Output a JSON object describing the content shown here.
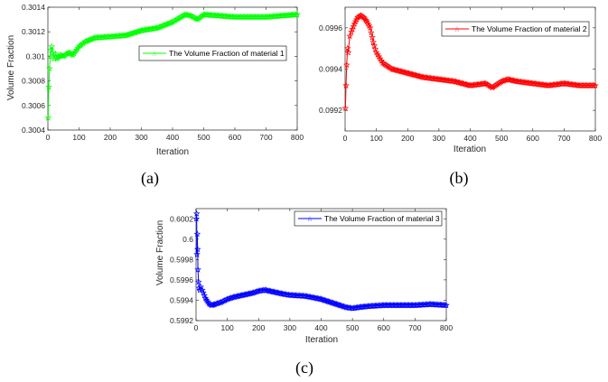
{
  "chart_data": [
    {
      "id": "a",
      "type": "line",
      "caption": "(a)",
      "xlabel": "Iteration",
      "ylabel": "Volume Fraction",
      "xlim": [
        0,
        800
      ],
      "ylim": [
        0.3004,
        0.3014
      ],
      "xticks": [
        0,
        100,
        200,
        300,
        400,
        500,
        600,
        700,
        800
      ],
      "xtick_labels": [
        "0",
        "100",
        "200",
        "300",
        "400",
        "500",
        "600",
        "700",
        "800"
      ],
      "yticks": [
        0.3004,
        0.3006,
        0.3008,
        0.301,
        0.3012,
        0.3014
      ],
      "ytick_labels": [
        "0.3004",
        "0.3006",
        "0.3008",
        "0.301",
        "0.3012",
        "0.3014"
      ],
      "legend": "top-right",
      "series": [
        {
          "name": "The Volume Fraction of material 1",
          "color": "#00ff00",
          "marker": "star",
          "x": [
            1,
            3,
            5,
            8,
            10,
            12,
            15,
            20,
            25,
            30,
            40,
            50,
            60,
            70,
            80,
            100,
            120,
            150,
            200,
            250,
            300,
            350,
            400,
            420,
            440,
            460,
            480,
            500,
            550,
            600,
            650,
            700,
            750,
            800
          ],
          "values": [
            0.3005,
            0.30075,
            0.3009,
            0.301,
            0.30105,
            0.30108,
            0.30103,
            0.30098,
            0.30102,
            0.30098,
            0.30101,
            0.301,
            0.30102,
            0.30103,
            0.30101,
            0.30108,
            0.30112,
            0.30115,
            0.30116,
            0.30117,
            0.30121,
            0.30123,
            0.30128,
            0.30131,
            0.30134,
            0.30133,
            0.3013,
            0.30134,
            0.30133,
            0.30132,
            0.30132,
            0.30132,
            0.30133,
            0.30134
          ]
        }
      ]
    },
    {
      "id": "b",
      "type": "line",
      "caption": "(b)",
      "xlabel": "Iteration",
      "ylabel": "",
      "xlim": [
        0,
        800
      ],
      "ylim": [
        0.0991,
        0.0997
      ],
      "xticks": [
        0,
        100,
        200,
        300,
        400,
        500,
        600,
        700,
        800
      ],
      "xtick_labels": [
        "0",
        "100",
        "200",
        "300",
        "400",
        "500",
        "600",
        "700",
        "800"
      ],
      "yticks": [
        0.0992,
        0.0994,
        0.0996
      ],
      "ytick_labels": [
        "0.0992",
        "0.0994",
        "0.0996"
      ],
      "legend": "top-right",
      "series": [
        {
          "name": "The Volume Fraction of material 2",
          "color": "#ff0000",
          "marker": "star",
          "x": [
            1,
            3,
            5,
            8,
            10,
            15,
            20,
            30,
            40,
            50,
            60,
            70,
            80,
            90,
            100,
            120,
            150,
            200,
            250,
            300,
            350,
            400,
            450,
            470,
            500,
            520,
            550,
            600,
            650,
            700,
            750,
            800
          ],
          "values": [
            0.09921,
            0.09932,
            0.09942,
            0.0995,
            0.09948,
            0.09956,
            0.09958,
            0.09962,
            0.09965,
            0.09966,
            0.09965,
            0.09963,
            0.0996,
            0.09953,
            0.09948,
            0.09943,
            0.0994,
            0.09938,
            0.09936,
            0.09935,
            0.09934,
            0.09932,
            0.09933,
            0.09931,
            0.09934,
            0.09935,
            0.09934,
            0.09933,
            0.09932,
            0.09933,
            0.09932,
            0.09932
          ]
        }
      ]
    },
    {
      "id": "c",
      "type": "line",
      "caption": "(c)",
      "xlabel": "Iteration",
      "ylabel": "Volume Fraction",
      "xlim": [
        0,
        800
      ],
      "ylim": [
        0.5992,
        0.6003
      ],
      "xticks": [
        0,
        100,
        200,
        300,
        400,
        500,
        600,
        700,
        800
      ],
      "xtick_labels": [
        "0",
        "100",
        "200",
        "300",
        "400",
        "500",
        "600",
        "700",
        "800"
      ],
      "yticks": [
        0.5992,
        0.5994,
        0.5996,
        0.5998,
        0.6,
        0.6002
      ],
      "ytick_labels": [
        "0.5992",
        "0.5994",
        "0.5996",
        "0.5998",
        "0.6",
        "0.6002"
      ],
      "legend": "top-right",
      "series": [
        {
          "name": "The Volume Fraction of material 3",
          "color": "#0000ff",
          "marker": "star",
          "x": [
            1,
            2,
            3,
            4,
            5,
            6,
            8,
            10,
            12,
            15,
            20,
            30,
            40,
            50,
            60,
            80,
            100,
            120,
            150,
            180,
            200,
            220,
            250,
            280,
            300,
            350,
            400,
            430,
            460,
            480,
            500,
            520,
            550,
            600,
            650,
            700,
            750,
            800
          ],
          "values": [
            0.6002,
            0.60025,
            0.59985,
            0.60005,
            0.5999,
            0.5997,
            0.59958,
            0.59952,
            0.5995,
            0.59953,
            0.5995,
            0.59942,
            0.59937,
            0.59935,
            0.59936,
            0.59938,
            0.59941,
            0.59943,
            0.59945,
            0.59947,
            0.59949,
            0.5995,
            0.59948,
            0.59946,
            0.59945,
            0.59944,
            0.59941,
            0.59938,
            0.59935,
            0.59933,
            0.59932,
            0.59933,
            0.59934,
            0.59935,
            0.59935,
            0.59935,
            0.59936,
            0.59935
          ]
        }
      ]
    }
  ]
}
